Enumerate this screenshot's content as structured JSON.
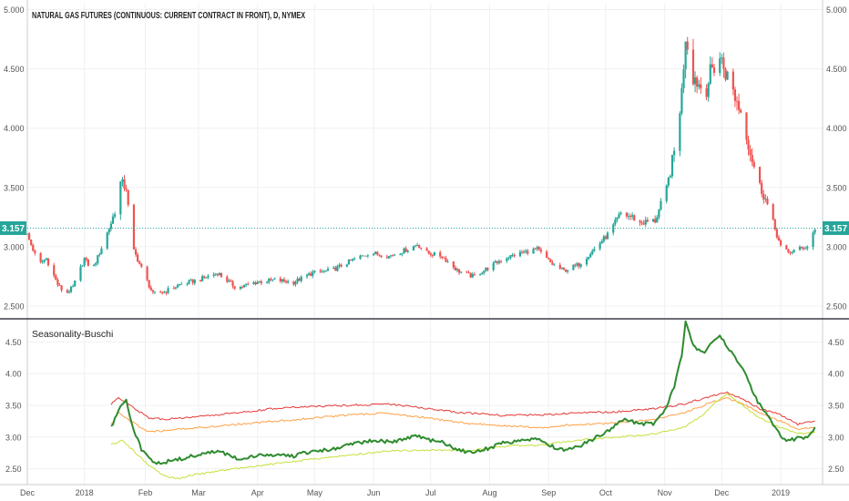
{
  "chart_data": [
    {
      "type": "candlestick",
      "title": "NATURAL GAS FUTURES (CONTINUOUS: CURRENT CONTRACT IN FRONT), D, NYMEX",
      "ylim": [
        2.4,
        5.05
      ],
      "yticks": [
        "5.000",
        "4.500",
        "4.000",
        "3.500",
        "3.000",
        "2.500"
      ],
      "last_price": "3.157",
      "last_price_value": 3.157,
      "x_range_days": [
        0,
        418
      ],
      "x_ticks": [
        {
          "label": "Dec",
          "day": 0
        },
        {
          "label": "2018",
          "day": 30
        },
        {
          "label": "Feb",
          "day": 62
        },
        {
          "label": "Mar",
          "day": 90
        },
        {
          "label": "Apr",
          "day": 121
        },
        {
          "label": "May",
          "day": 151
        },
        {
          "label": "Jun",
          "day": 182
        },
        {
          "label": "Jul",
          "day": 212
        },
        {
          "label": "Aug",
          "day": 243
        },
        {
          "label": "Sep",
          "day": 274
        },
        {
          "label": "Oct",
          "day": 304
        },
        {
          "label": "Nov",
          "day": 335
        },
        {
          "label": "Dec",
          "day": 365
        },
        {
          "label": "2019",
          "day": 396
        }
      ],
      "close_anchors": [
        [
          0,
          3.1
        ],
        [
          6,
          2.85
        ],
        [
          10,
          2.9
        ],
        [
          16,
          2.68
        ],
        [
          20,
          2.6
        ],
        [
          24,
          2.66
        ],
        [
          30,
          2.9
        ],
        [
          34,
          2.8
        ],
        [
          38,
          2.95
        ],
        [
          44,
          3.2
        ],
        [
          46,
          3.3
        ],
        [
          48,
          3.55
        ],
        [
          52,
          3.5
        ],
        [
          55,
          3.0
        ],
        [
          60,
          2.82
        ],
        [
          66,
          2.6
        ],
        [
          72,
          2.62
        ],
        [
          80,
          2.68
        ],
        [
          90,
          2.72
        ],
        [
          100,
          2.78
        ],
        [
          110,
          2.65
        ],
        [
          120,
          2.7
        ],
        [
          130,
          2.72
        ],
        [
          140,
          2.7
        ],
        [
          150,
          2.78
        ],
        [
          160,
          2.8
        ],
        [
          170,
          2.88
        ],
        [
          180,
          2.95
        ],
        [
          190,
          2.92
        ],
        [
          200,
          2.98
        ],
        [
          205,
          3.02
        ],
        [
          210,
          2.95
        ],
        [
          218,
          2.92
        ],
        [
          226,
          2.8
        ],
        [
          234,
          2.75
        ],
        [
          240,
          2.8
        ],
        [
          250,
          2.9
        ],
        [
          260,
          2.95
        ],
        [
          268,
          2.98
        ],
        [
          276,
          2.85
        ],
        [
          282,
          2.8
        ],
        [
          290,
          2.85
        ],
        [
          298,
          2.98
        ],
        [
          306,
          3.12
        ],
        [
          312,
          3.28
        ],
        [
          318,
          3.25
        ],
        [
          322,
          3.2
        ],
        [
          330,
          3.22
        ],
        [
          336,
          3.48
        ],
        [
          340,
          3.8
        ],
        [
          344,
          4.3
        ],
        [
          346,
          4.8
        ],
        [
          350,
          4.45
        ],
        [
          356,
          4.3
        ],
        [
          360,
          4.5
        ],
        [
          364,
          4.6
        ],
        [
          370,
          4.35
        ],
        [
          376,
          4.1
        ],
        [
          380,
          3.8
        ],
        [
          384,
          3.55
        ],
        [
          388,
          3.4
        ],
        [
          392,
          3.2
        ],
        [
          396,
          3.0
        ],
        [
          400,
          2.95
        ],
        [
          405,
          2.98
        ],
        [
          410,
          3.0
        ],
        [
          414,
          3.157
        ]
      ],
      "down_candle_color": "#ef5350",
      "up_candle_color": "#26a69a",
      "price_line_color": "#26a69a"
    },
    {
      "type": "line",
      "title": "Seasonality-Buschi",
      "ylim": [
        2.25,
        4.85
      ],
      "yticks": [
        "4.50",
        "4.00",
        "3.50",
        "3.00",
        "2.50"
      ],
      "start_day": 44,
      "end_day": 414,
      "series": [
        {
          "color": "#2e8b2e",
          "stroke_width": 2,
          "points": [
            [
              44,
              3.15
            ],
            [
              46,
              3.3
            ],
            [
              48,
              3.45
            ],
            [
              52,
              3.6
            ],
            [
              55,
              3.2
            ],
            [
              60,
              2.8
            ],
            [
              66,
              2.6
            ],
            [
              72,
              2.6
            ],
            [
              80,
              2.65
            ],
            [
              90,
              2.72
            ],
            [
              100,
              2.78
            ],
            [
              110,
              2.66
            ],
            [
              120,
              2.7
            ],
            [
              130,
              2.72
            ],
            [
              140,
              2.7
            ],
            [
              150,
              2.78
            ],
            [
              160,
              2.8
            ],
            [
              170,
              2.88
            ],
            [
              180,
              2.95
            ],
            [
              190,
              2.92
            ],
            [
              200,
              2.98
            ],
            [
              205,
              3.02
            ],
            [
              210,
              2.95
            ],
            [
              218,
              2.92
            ],
            [
              226,
              2.8
            ],
            [
              234,
              2.75
            ],
            [
              240,
              2.8
            ],
            [
              250,
              2.9
            ],
            [
              260,
              2.95
            ],
            [
              268,
              2.98
            ],
            [
              276,
              2.85
            ],
            [
              282,
              2.8
            ],
            [
              290,
              2.85
            ],
            [
              298,
              2.98
            ],
            [
              306,
              3.12
            ],
            [
              312,
              3.28
            ],
            [
              318,
              3.25
            ],
            [
              322,
              3.2
            ],
            [
              330,
              3.22
            ],
            [
              336,
              3.48
            ],
            [
              340,
              3.8
            ],
            [
              344,
              4.3
            ],
            [
              346,
              4.8
            ],
            [
              350,
              4.45
            ],
            [
              356,
              4.3
            ],
            [
              360,
              4.5
            ],
            [
              364,
              4.6
            ],
            [
              370,
              4.35
            ],
            [
              376,
              4.1
            ],
            [
              380,
              3.8
            ],
            [
              384,
              3.55
            ],
            [
              388,
              3.4
            ],
            [
              392,
              3.2
            ],
            [
              396,
              3.0
            ],
            [
              400,
              2.95
            ],
            [
              405,
              2.98
            ],
            [
              410,
              3.0
            ],
            [
              414,
              3.157
            ]
          ]
        },
        {
          "color": "#e53935",
          "stroke_width": 1,
          "points": [
            [
              44,
              3.52
            ],
            [
              48,
              3.62
            ],
            [
              52,
              3.55
            ],
            [
              58,
              3.42
            ],
            [
              64,
              3.3
            ],
            [
              72,
              3.28
            ],
            [
              90,
              3.32
            ],
            [
              110,
              3.38
            ],
            [
              130,
              3.45
            ],
            [
              150,
              3.48
            ],
            [
              170,
              3.5
            ],
            [
              190,
              3.52
            ],
            [
              210,
              3.45
            ],
            [
              230,
              3.38
            ],
            [
              250,
              3.34
            ],
            [
              270,
              3.35
            ],
            [
              290,
              3.38
            ],
            [
              310,
              3.4
            ],
            [
              330,
              3.45
            ],
            [
              345,
              3.52
            ],
            [
              360,
              3.65
            ],
            [
              368,
              3.7
            ],
            [
              376,
              3.6
            ],
            [
              385,
              3.45
            ],
            [
              396,
              3.35
            ],
            [
              405,
              3.2
            ],
            [
              414,
              3.25
            ]
          ]
        },
        {
          "color": "#ff9f43",
          "stroke_width": 1,
          "points": [
            [
              44,
              3.2
            ],
            [
              48,
              3.38
            ],
            [
              52,
              3.3
            ],
            [
              58,
              3.18
            ],
            [
              64,
              3.08
            ],
            [
              72,
              3.1
            ],
            [
              90,
              3.15
            ],
            [
              110,
              3.2
            ],
            [
              130,
              3.25
            ],
            [
              150,
              3.3
            ],
            [
              170,
              3.35
            ],
            [
              190,
              3.38
            ],
            [
              210,
              3.3
            ],
            [
              230,
              3.22
            ],
            [
              250,
              3.18
            ],
            [
              270,
              3.15
            ],
            [
              290,
              3.2
            ],
            [
              310,
              3.22
            ],
            [
              330,
              3.28
            ],
            [
              345,
              3.38
            ],
            [
              360,
              3.55
            ],
            [
              368,
              3.62
            ],
            [
              376,
              3.52
            ],
            [
              385,
              3.38
            ],
            [
              396,
              3.25
            ],
            [
              405,
              3.12
            ],
            [
              414,
              3.15
            ]
          ]
        },
        {
          "color": "#c6e03a",
          "stroke_width": 1,
          "points": [
            [
              44,
              2.88
            ],
            [
              50,
              2.95
            ],
            [
              58,
              2.72
            ],
            [
              64,
              2.55
            ],
            [
              72,
              2.38
            ],
            [
              80,
              2.35
            ],
            [
              90,
              2.42
            ],
            [
              110,
              2.5
            ],
            [
              130,
              2.58
            ],
            [
              150,
              2.65
            ],
            [
              170,
              2.72
            ],
            [
              190,
              2.78
            ],
            [
              210,
              2.8
            ],
            [
              230,
              2.78
            ],
            [
              250,
              2.85
            ],
            [
              270,
              2.88
            ],
            [
              290,
              2.95
            ],
            [
              310,
              3.0
            ],
            [
              330,
              3.05
            ],
            [
              345,
              3.15
            ],
            [
              355,
              3.35
            ],
            [
              362,
              3.55
            ],
            [
              368,
              3.68
            ],
            [
              376,
              3.5
            ],
            [
              385,
              3.3
            ],
            [
              396,
              3.15
            ],
            [
              405,
              3.05
            ],
            [
              414,
              3.08
            ]
          ]
        }
      ]
    }
  ]
}
